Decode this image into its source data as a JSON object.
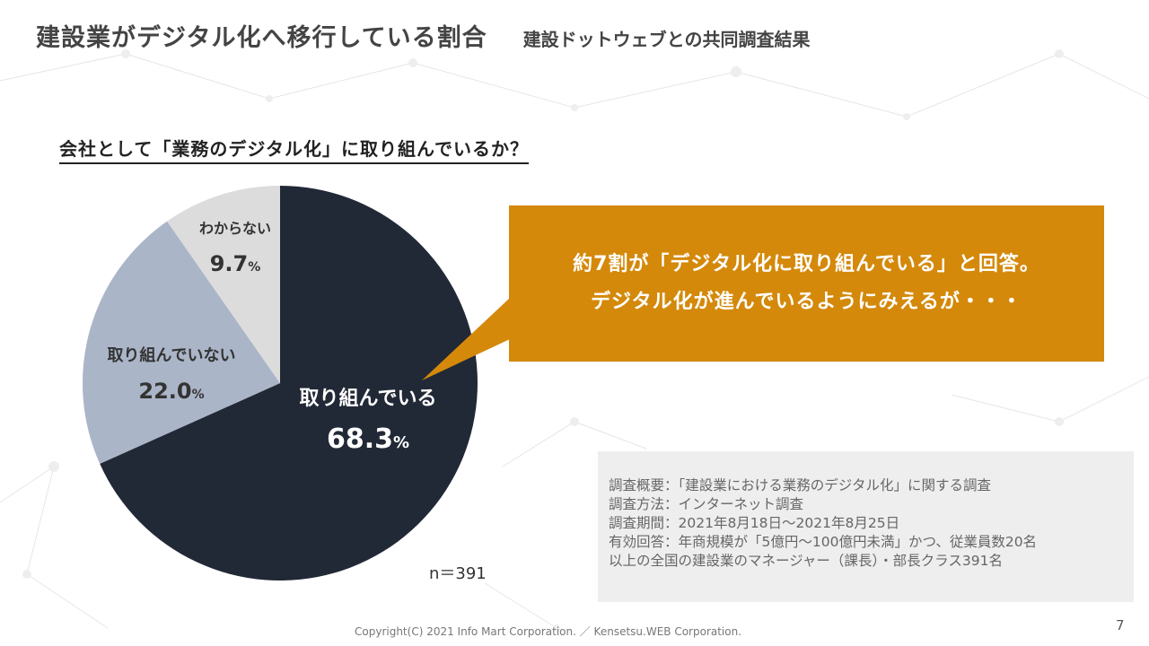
{
  "header": {
    "title": "建設業がデジタル化へ移行している割合",
    "subtitle": "建設ドットウェブとの共同調査結果"
  },
  "question": "会社として「業務のデジタル化」に取り組んでいるか？",
  "chart_data": {
    "type": "pie",
    "slices": [
      {
        "label": "取り組んでいる",
        "value": 68.3,
        "display": "68.3",
        "color": "#222936",
        "text_color": "#ffffff"
      },
      {
        "label": "取り組んでいない",
        "value": 22.0,
        "display": "22.0",
        "color": "#abb5c8",
        "text_color": "#333333"
      },
      {
        "label": "わからない",
        "value": 9.7,
        "display": "9.7",
        "color": "#dcdcdc",
        "text_color": "#333333"
      }
    ],
    "unit": "%"
  },
  "sample_size": "n＝391",
  "callout": {
    "line1": "約7割が「デジタル化に取り組んでいる」と回答。",
    "line2": "デジタル化が進んでいるようにみえるが・・・",
    "color": "#d4890a"
  },
  "survey": {
    "lines": [
      "調査概要：「建設業における業務のデジタル化」に関する調査",
      "調査方法：インターネット調査",
      "調査期間：2021年8月18日～2021年8月25日",
      "有効回答：年商規模が「5億円～100億円未満」かつ、従業員数20名",
      "以上の全国の建設業のマネージャー（課長）・部長クラス391名"
    ]
  },
  "footer": {
    "copyright": "Copyright(C) 2021 Info Mart Corporation. ／ Kensetsu.WEB Corporation.",
    "page": "7"
  }
}
